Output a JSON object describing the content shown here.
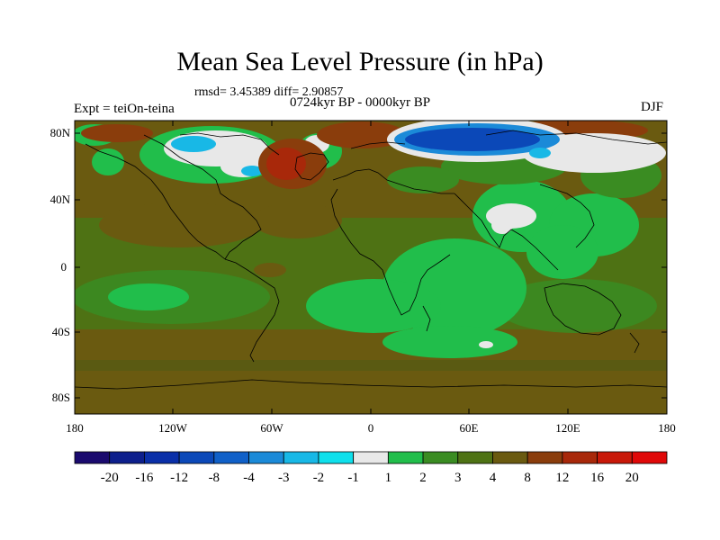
{
  "title": "Mean Sea Level Pressure (in hPa)",
  "stats": "rmsd= 3.45389  diff= 2.90857",
  "period": "0724kyr BP - 0000kyr BP",
  "experiment": "Expt = teiOn-teina",
  "season": "DJF",
  "lat_ticks": [
    "80N",
    "40N",
    "0",
    "40S",
    "80S"
  ],
  "lon_ticks": [
    "180",
    "120W",
    "60W",
    "0",
    "60E",
    "120E",
    "180"
  ],
  "colorbar": {
    "labels": [
      "-20",
      "-16",
      "-12",
      "-8",
      "-4",
      "-3",
      "-2",
      "-1",
      "1",
      "2",
      "3",
      "4",
      "8",
      "12",
      "16",
      "20"
    ],
    "colors": [
      "#1a0a6e",
      "#0d1f8c",
      "#0a2fa8",
      "#0b48b8",
      "#1060c8",
      "#1b8ad8",
      "#18b8e6",
      "#0ee0ec",
      "#e8e8e8",
      "#21be4b",
      "#3a8c22",
      "#4e7214",
      "#6a5a10",
      "#8a3d0c",
      "#a8280a",
      "#c81808",
      "#e00808"
    ]
  },
  "map_colors": {
    "ocean_base": "#4e7214",
    "brown": "#6a5a10",
    "dark_green": "#3a8c22",
    "bright_green": "#21be4b",
    "white": "#e8e8e8",
    "orange": "#8a3d0c",
    "red": "#a8280a",
    "blue": "#0b48b8",
    "light_blue": "#1b8ad8",
    "cyan": "#18b8e6"
  }
}
